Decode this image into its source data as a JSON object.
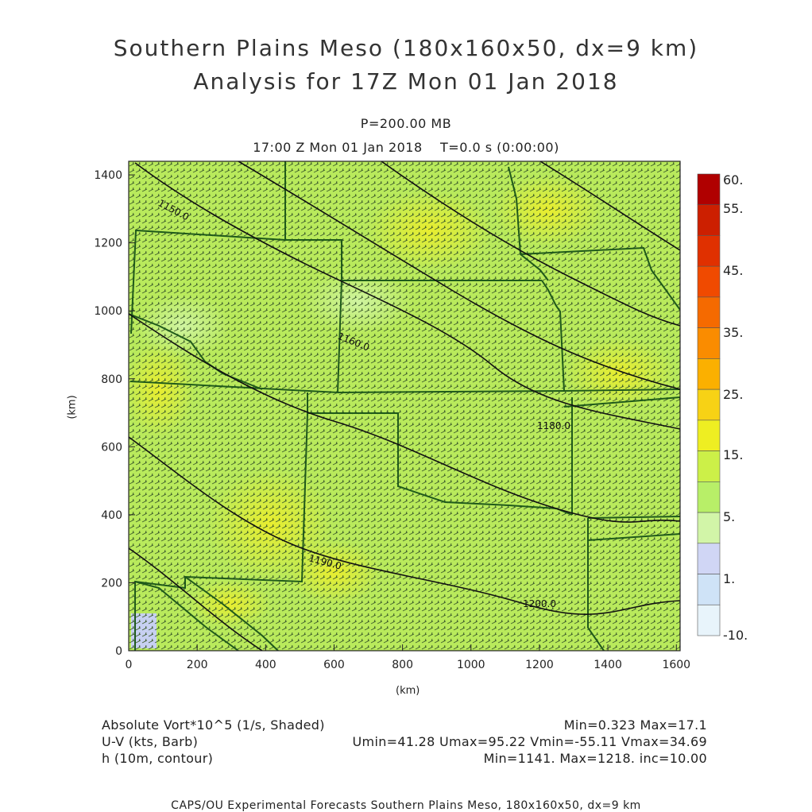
{
  "header": {
    "title_line1": "Southern Plains Meso (180x160x50, dx=9 km)",
    "title_line2": "Analysis for 17Z Mon 01 Jan 2018",
    "level": "P=200.00 MB",
    "time": "17:00 Z Mon 01 Jan 2018    T=0.0 s (0:00:00)"
  },
  "axes": {
    "x_label": "(km)",
    "y_label": "(km)",
    "x_ticks": [
      "0",
      "200",
      "400",
      "600",
      "800",
      "1000",
      "1200",
      "1400",
      "1600"
    ],
    "y_ticks": [
      "0",
      "200",
      "400",
      "600",
      "800",
      "1000",
      "1200",
      "1400"
    ],
    "x_range": [
      0,
      1611
    ],
    "y_range": [
      0,
      1440
    ]
  },
  "colorbar": {
    "labels": [
      "60.",
      "55.",
      "45.",
      "35.",
      "25.",
      "15.",
      "5.",
      "1.",
      "-10."
    ],
    "colors": [
      "#b00000",
      "#cc1f00",
      "#e03000",
      "#f04a00",
      "#f56a00",
      "#fa8c00",
      "#fbb000",
      "#f7d215",
      "#eeee22",
      "#ccf048",
      "#b8ef68",
      "#d2f5a8",
      "#d0d6f5",
      "#cfe3f7",
      "#e8f4fb"
    ]
  },
  "contour_labels": [
    "1150.0",
    "1160.0",
    "1180.0",
    "1190.0",
    "1200.0"
  ],
  "footer": {
    "field1": "Absolute Vort*10^5 (1/s, Shaded)",
    "field2": "U-V (kts, Barb)",
    "field3": "h (10m, contour)",
    "stats1": "Min=0.323 Max=17.1",
    "stats2": "Umin=41.28 Umax=95.22 Vmin=-55.11 Vmax=34.69",
    "stats3": "Min=1141. Max=1218. inc=10.00",
    "credit": "CAPS/OU Experimental Forecasts  Southern Plains Meso, 180x160x50, dx=9 km"
  }
}
